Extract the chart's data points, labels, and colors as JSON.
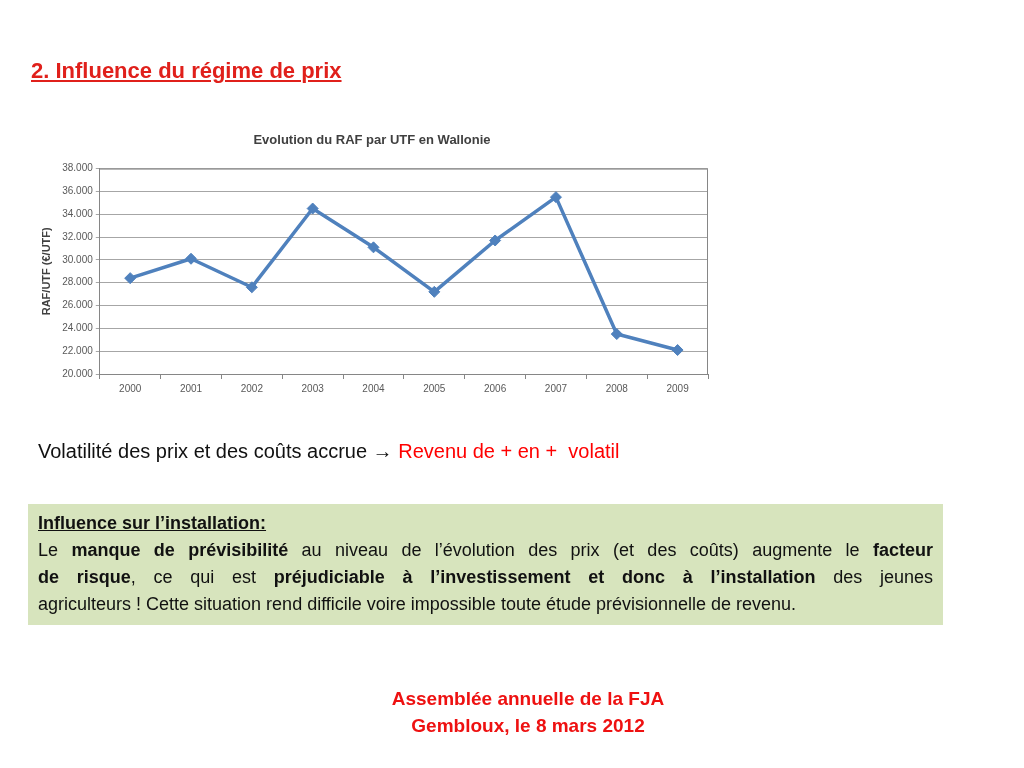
{
  "chart_data": {
    "type": "line",
    "title": "Evolution du RAF par UTF en Wallonie",
    "ylabel": "RAF/UTF (€/UTF)",
    "categories": [
      "2000",
      "2001",
      "2002",
      "2003",
      "2004",
      "2005",
      "2006",
      "2007",
      "2008",
      "2009"
    ],
    "series": [
      {
        "color": "#4f81bd",
        "values": [
          28400,
          30100,
          27600,
          34500,
          31100,
          27200,
          31700,
          35500,
          23500,
          22100
        ]
      }
    ],
    "ylim": [
      20000,
      38000
    ],
    "yticks": [
      {
        "value": 20000,
        "label": "20.000"
      },
      {
        "value": 22000,
        "label": "22.000"
      },
      {
        "value": 24000,
        "label": "24.000"
      },
      {
        "value": 26000,
        "label": "26.000"
      },
      {
        "value": 28000,
        "label": "28.000"
      },
      {
        "value": 30000,
        "label": "30.000"
      },
      {
        "value": 32000,
        "label": "32.000"
      },
      {
        "value": 34000,
        "label": "34.000"
      },
      {
        "value": 36000,
        "label": "36.000"
      },
      {
        "value": 38000,
        "label": "38.000"
      }
    ],
    "grid": "y",
    "legend": false,
    "marker": "diamond",
    "line_style": "solid",
    "annotations": [
      "2. Influence du régime de prix",
      "Volatilité des prix et des coûts accrue →",
      "Revenu de + en +  volatil",
      "Influence sur l’installation:",
      "Le ",
      "manque de prévisibilité",
      " au niveau de l’évolution des prix (et des coûts) augmente le ",
      "facteur",
      "de risque",
      ", ce qui est ",
      "préjudiciable à l’investissement et donc à l’installation",
      " des jeunes",
      "agriculteurs ! Cette situation rend difficile voire impossible toute étude prévisionnelle de revenu.",
      "Assemblée annuelle de la FJA",
      "Gembloux, le 8 mars 2012"
    ]
  }
}
